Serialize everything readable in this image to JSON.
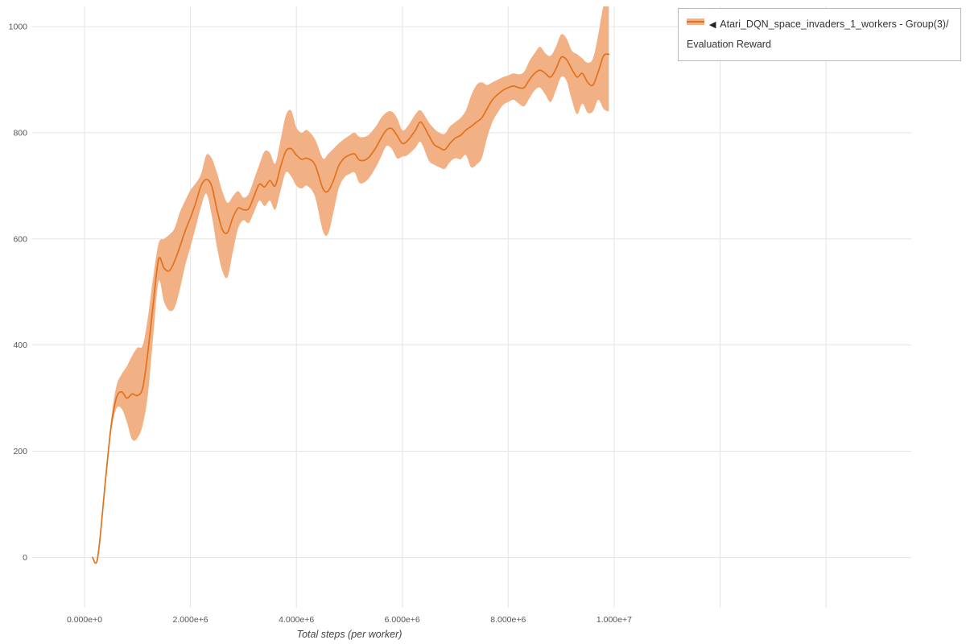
{
  "legend": {
    "collapse_icon": "◀",
    "label": "Atari_DQN_space_invaders_1_workers - Group(3)/Evaluation Reward"
  },
  "axes": {
    "x_title": "Total steps (per worker)",
    "x_tick_labels": [
      "0.000e+0",
      "2.000e+6",
      "4.000e+6",
      "6.000e+6",
      "8.000e+6",
      "1.000e+7"
    ],
    "y_tick_labels": [
      "0",
      "200",
      "400",
      "600",
      "800",
      "1000"
    ]
  },
  "colors": {
    "line": "#e2711d",
    "band": "#f2b184",
    "grid": "#e4e4e4",
    "tick_text": "#555555",
    "axis_title_text": "#444444"
  },
  "chart_data": {
    "type": "line",
    "title": "",
    "xlabel": "Total steps (per worker)",
    "ylabel": "",
    "legend_position": "top-right",
    "grid": true,
    "band": true,
    "x_unit": "steps (values in millions)",
    "xlim_e6": [
      -0.988,
      15.61
    ],
    "ylim": [
      -95,
      1038
    ],
    "x_tick_values_e6": [
      0,
      2,
      4,
      6,
      8,
      10
    ],
    "x_grid_extra_e6": [
      12,
      14
    ],
    "y_tick_values": [
      0,
      200,
      400,
      600,
      800,
      1000
    ],
    "series": [
      {
        "name": "Atari_DQN_space_invaders_1_workers - Group(3)/Evaluation Reward",
        "x_e6": [
          0.15,
          0.25,
          0.4,
          0.5,
          0.6,
          0.7,
          0.8,
          0.9,
          1.0,
          1.1,
          1.2,
          1.3,
          1.4,
          1.5,
          1.6,
          1.7,
          1.8,
          1.9,
          2.0,
          2.1,
          2.2,
          2.3,
          2.4,
          2.5,
          2.6,
          2.7,
          2.8,
          2.9,
          3.0,
          3.1,
          3.2,
          3.3,
          3.4,
          3.5,
          3.6,
          3.7,
          3.8,
          3.9,
          4.0,
          4.1,
          4.2,
          4.35,
          4.5,
          4.6,
          4.7,
          4.8,
          4.9,
          5.0,
          5.1,
          5.2,
          5.35,
          5.5,
          5.6,
          5.7,
          5.8,
          5.9,
          6.0,
          6.1,
          6.25,
          6.35,
          6.5,
          6.6,
          6.7,
          6.8,
          6.9,
          7.0,
          7.1,
          7.2,
          7.3,
          7.4,
          7.5,
          7.6,
          7.7,
          7.8,
          7.9,
          8.0,
          8.1,
          8.2,
          8.3,
          8.4,
          8.5,
          8.6,
          8.7,
          8.8,
          8.9,
          9.0,
          9.1,
          9.2,
          9.3,
          9.4,
          9.5,
          9.6,
          9.7,
          9.8,
          9.9
        ],
        "mean": [
          0,
          0,
          150,
          245,
          300,
          312,
          300,
          308,
          305,
          320,
          390,
          480,
          562,
          545,
          540,
          558,
          585,
          615,
          640,
          668,
          700,
          712,
          700,
          655,
          618,
          612,
          640,
          658,
          655,
          657,
          680,
          703,
          698,
          710,
          700,
          735,
          765,
          770,
          758,
          750,
          752,
          740,
          695,
          690,
          710,
          738,
          752,
          758,
          760,
          748,
          752,
          772,
          790,
          805,
          808,
          795,
          780,
          785,
          805,
          820,
          795,
          778,
          772,
          768,
          780,
          790,
          795,
          805,
          812,
          820,
          828,
          845,
          862,
          872,
          880,
          885,
          888,
          885,
          885,
          900,
          912,
          918,
          912,
          905,
          920,
          942,
          938,
          920,
          905,
          912,
          895,
          890,
          915,
          945,
          948
        ],
        "lower": [
          0,
          0,
          140,
          235,
          280,
          280,
          255,
          222,
          225,
          250,
          310,
          420,
          520,
          482,
          465,
          470,
          505,
          550,
          585,
          622,
          660,
          685,
          645,
          585,
          540,
          528,
          575,
          620,
          635,
          630,
          650,
          672,
          662,
          672,
          655,
          690,
          725,
          718,
          700,
          695,
          700,
          680,
          615,
          610,
          650,
          695,
          715,
          722,
          725,
          705,
          712,
          735,
          755,
          775,
          770,
          752,
          755,
          758,
          772,
          782,
          748,
          740,
          735,
          732,
          745,
          752,
          750,
          758,
          735,
          740,
          752,
          790,
          820,
          838,
          852,
          858,
          862,
          855,
          850,
          865,
          880,
          885,
          872,
          858,
          880,
          905,
          898,
          862,
          835,
          855,
          838,
          840,
          862,
          845,
          840
        ],
        "upper": [
          0,
          0,
          160,
          258,
          322,
          345,
          360,
          380,
          395,
          400,
          455,
          530,
          592,
          600,
          608,
          620,
          650,
          672,
          692,
          705,
          722,
          758,
          752,
          725,
          690,
          668,
          680,
          690,
          678,
          685,
          712,
          740,
          765,
          762,
          742,
          785,
          832,
          842,
          810,
          800,
          805,
          788,
          752,
          760,
          770,
          780,
          788,
          795,
          800,
          792,
          795,
          812,
          828,
          838,
          840,
          828,
          805,
          812,
          835,
          842,
          820,
          808,
          800,
          798,
          812,
          820,
          828,
          842,
          870,
          890,
          895,
          890,
          895,
          900,
          905,
          908,
          912,
          910,
          915,
          935,
          950,
          962,
          950,
          945,
          962,
          985,
          978,
          955,
          948,
          940,
          932,
          940,
          985,
          1040,
          1045
        ]
      }
    ]
  }
}
